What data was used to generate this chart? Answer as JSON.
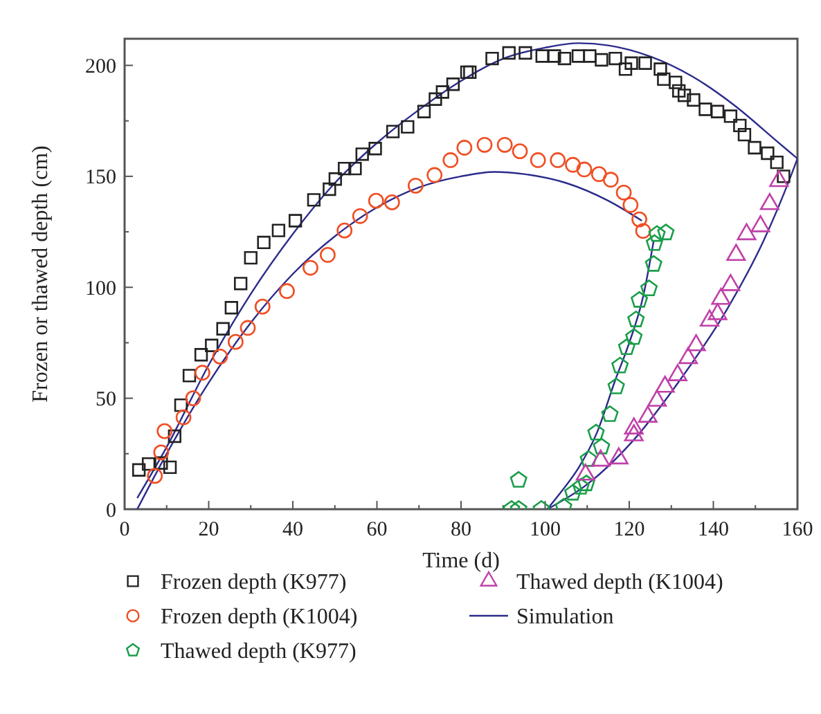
{
  "chart_data": {
    "type": "scatter",
    "xlabel": "Time (d)",
    "ylabel": "Frozen or thawed depth (cm)",
    "xlim": [
      0,
      160
    ],
    "ylim": [
      0,
      212
    ],
    "xticks": [
      0,
      {
        "value": 10,
        "label": null
      },
      20,
      {
        "value": 30,
        "label": null
      },
      40,
      {
        "value": 50,
        "label": null
      },
      60,
      {
        "value": 70,
        "label": null
      },
      80,
      {
        "value": 90,
        "label": null
      },
      100,
      {
        "value": 110,
        "label": null
      },
      120,
      {
        "value": 130,
        "label": null
      },
      140,
      {
        "value": 150,
        "label": null
      },
      160
    ],
    "yticks": [
      0,
      {
        "value": 25,
        "label": null
      },
      50,
      {
        "value": 75,
        "label": null
      },
      100,
      {
        "value": 125,
        "label": null
      },
      150,
      {
        "value": 175,
        "label": null
      },
      200
    ],
    "grid": false,
    "legend": "bottom",
    "series": [
      {
        "name": "Frozen depth (K977)",
        "marker": "square",
        "color": "#222222",
        "x": [
          3.4,
          5.7,
          8.7,
          10.8,
          11.9,
          13.4,
          15.4,
          18.2,
          20.7,
          23.4,
          25.4,
          27.6,
          30,
          33.1,
          36.6,
          40.6,
          45,
          48.7,
          50.1,
          52.3,
          54.8,
          56.5,
          59.6,
          63.8,
          67.3,
          71.2,
          73.9,
          75.6,
          78.1,
          81.4,
          82.1,
          87.4,
          91.4,
          95.3,
          99.3,
          102.2,
          104.6,
          107.9,
          110.6,
          113.4,
          116.7,
          119.1,
          120.5,
          123.8,
          127.4,
          128.2,
          131,
          131.8,
          133.1,
          135.3,
          138.1,
          141,
          144.1,
          146.3,
          147.4,
          149.8,
          152.9,
          155.1,
          156.7
        ],
        "values": [
          17.7,
          20.4,
          20.8,
          18.9,
          32.9,
          46.9,
          60.2,
          69.6,
          73.8,
          81.3,
          90.8,
          101.7,
          113.3,
          120.2,
          125.6,
          130,
          139.4,
          144.2,
          148.8,
          153.5,
          153.5,
          160,
          162.5,
          170.2,
          172.3,
          179.2,
          184.8,
          188,
          191.5,
          196.9,
          196.9,
          203.1,
          205.6,
          205.6,
          204.2,
          204.2,
          203.1,
          204.2,
          204.2,
          202.5,
          203.1,
          198.3,
          201,
          201,
          198.3,
          193.8,
          192.3,
          188.5,
          186.5,
          184.4,
          180.2,
          179.2,
          177.1,
          172.9,
          168.8,
          162.9,
          160.4,
          156.3,
          150
        ]
      },
      {
        "name": "Frozen depth (K1004)",
        "marker": "circle",
        "color": "#f04e23",
        "x": [
          7.2,
          8.7,
          9.5,
          14,
          16.3,
          18.5,
          22.7,
          26.4,
          29.3,
          32.8,
          38.6,
          44.2,
          48.3,
          52.3,
          56,
          59.8,
          63.6,
          69.2,
          73.7,
          77.5,
          80.8,
          85.6,
          90.4,
          94,
          98.3,
          103,
          106.6,
          109.3,
          112.8,
          115.6,
          118.7,
          120.3,
          122.4,
          123.3
        ],
        "values": [
          15,
          25.6,
          35.2,
          41.4,
          50,
          61.5,
          68.8,
          75.4,
          81.7,
          91.3,
          98.3,
          108.8,
          114.6,
          125.6,
          132.1,
          139,
          138.3,
          145.8,
          150.6,
          157.3,
          162.9,
          164.2,
          164.2,
          161.3,
          157.3,
          157.3,
          155.2,
          153.1,
          151,
          148.5,
          142.7,
          137.1,
          130.6,
          125.4
        ]
      },
      {
        "name": "Thawed depth (K977)",
        "color": "#1a9e4a",
        "x": [
          92,
          93.7,
          93.7,
          99.1,
          104.4,
          106.6,
          108.5,
          109.8,
          110.3,
          112.1,
          113.4,
          115.4,
          116.9,
          117.8,
          119.4,
          121.1,
          121.6,
          122.4,
          124.7,
          125.8,
          126,
          126.6,
          128.7
        ],
        "values": [
          0,
          0,
          13.1,
          0,
          1,
          7.3,
          10,
          11.5,
          22.5,
          34.4,
          28.1,
          42.7,
          55.2,
          64.6,
          72.9,
          77.5,
          85.4,
          94.2,
          99.4,
          110.4,
          119.8,
          123.9,
          124.6
        ]
      },
      {
        "name": "Thawed depth (K1004)",
        "marker": "triangle",
        "color": "#c040a8",
        "x": [
          109.6,
          113.2,
          117.5,
          121.1,
          121.1,
          124.4,
          126.6,
          128.5,
          131.5,
          134,
          135.9,
          139.1,
          141,
          141.8,
          144.1,
          145.4,
          147.9,
          151.2,
          153.4,
          155.6
        ],
        "values": [
          15.6,
          21.9,
          22.9,
          33.3,
          36.4,
          41.7,
          48.9,
          55.2,
          60.4,
          68.1,
          73.9,
          85,
          87.9,
          94.8,
          101,
          114.6,
          123.9,
          127.5,
          137.5,
          147.9
        ]
      },
      {
        "name": "Simulation",
        "type": "line",
        "color": "#2b2b8c",
        "x": [
          3,
          10,
          20,
          30,
          40,
          50,
          60,
          70,
          80,
          90,
          100,
          108,
          115,
          125,
          135,
          145,
          155,
          160
        ],
        "values": [
          5,
          28,
          65,
          97,
          124,
          147,
          165,
          180,
          193,
          203,
          208,
          210,
          209,
          204,
          195,
          182,
          166,
          158
        ]
      },
      {
        "type": "line",
        "color": "#2b2b8c",
        "x": [
          3,
          10,
          20,
          30,
          40,
          50,
          60,
          70,
          80,
          88,
          95,
          105,
          115,
          123
        ],
        "values": [
          0,
          25,
          57,
          84,
          106,
          123,
          136,
          145,
          150,
          152,
          151,
          147,
          139,
          130
        ]
      },
      {
        "type": "line",
        "color": "#2b2b8c",
        "x": [
          100.5,
          103.6,
          108,
          112.3,
          116.7,
          120,
          123.3,
          125.8
        ],
        "values": [
          0,
          7.3,
          18.8,
          34.4,
          58.3,
          75,
          95.8,
          120.8
        ]
      },
      {
        "type": "line",
        "color": "#2b2b8c",
        "x": [
          100.5,
          110.2,
          121.1,
          132.1,
          143.1,
          151.9,
          158.4,
          160
        ],
        "values": [
          0,
          11.5,
          31.3,
          58.3,
          89.6,
          120.8,
          150,
          158
        ]
      }
    ]
  }
}
